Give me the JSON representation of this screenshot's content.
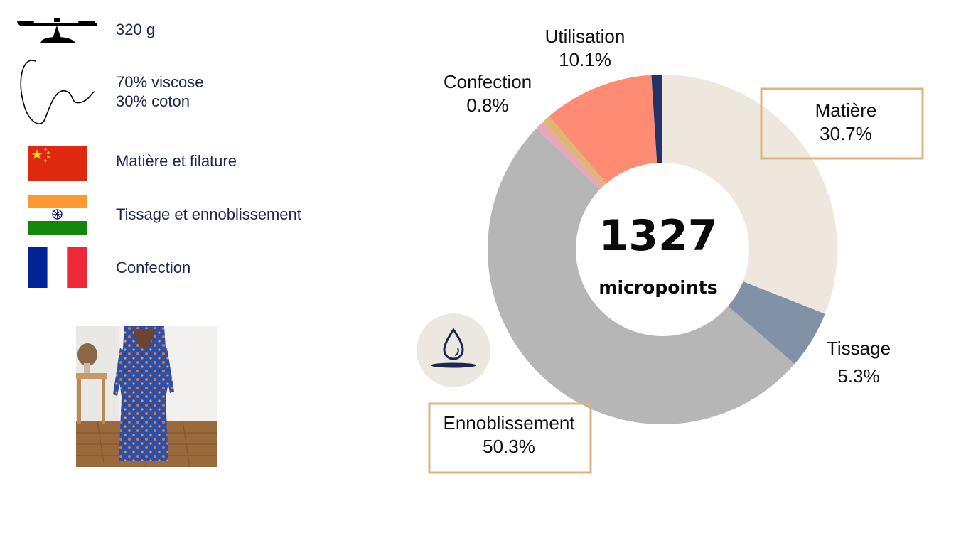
{
  "product": {
    "weight": "320 g",
    "composition": [
      "70% viscose",
      "30% coton"
    ],
    "origins": [
      {
        "flag": "china-flag-icon",
        "label": "Matière et filature"
      },
      {
        "flag": "india-flag-icon",
        "label": "Tissage et ennoblissement"
      },
      {
        "flag": "france-flag-icon",
        "label": "Confection"
      }
    ],
    "icons": {
      "weight": "balance-scale-icon",
      "composition": "fiber-thread-icon",
      "water": "water-drop-icon"
    }
  },
  "chart_data": {
    "type": "pie",
    "donut": true,
    "center_value": "1327",
    "center_unit": "micropoints",
    "slices": [
      {
        "label": "Matière",
        "value": 30.7,
        "display": "30.7%",
        "color": "#ede7de",
        "boxed": true
      },
      {
        "label": "Tissage",
        "value": 5.3,
        "display": "5.3%",
        "color": "#8292a6",
        "boxed": false
      },
      {
        "label": "Ennoblissement",
        "value": 50.3,
        "display": "50.3%",
        "color": "#b6b6b6",
        "boxed": true
      },
      {
        "label": "",
        "value": 0.8,
        "display": "",
        "color": "#e5a7b9",
        "boxed": false
      },
      {
        "label": "Confection",
        "value": 0.8,
        "display": "0.8%",
        "color": "#dfb673",
        "boxed": false
      },
      {
        "label": "Utilisation",
        "value": 10.1,
        "display": "10.1%",
        "color": "#fe8c74",
        "boxed": false
      },
      {
        "label": "",
        "value": 1.0,
        "display": "",
        "color": "#253267",
        "boxed": false
      }
    ],
    "label_box_color": "#dcb57c"
  }
}
